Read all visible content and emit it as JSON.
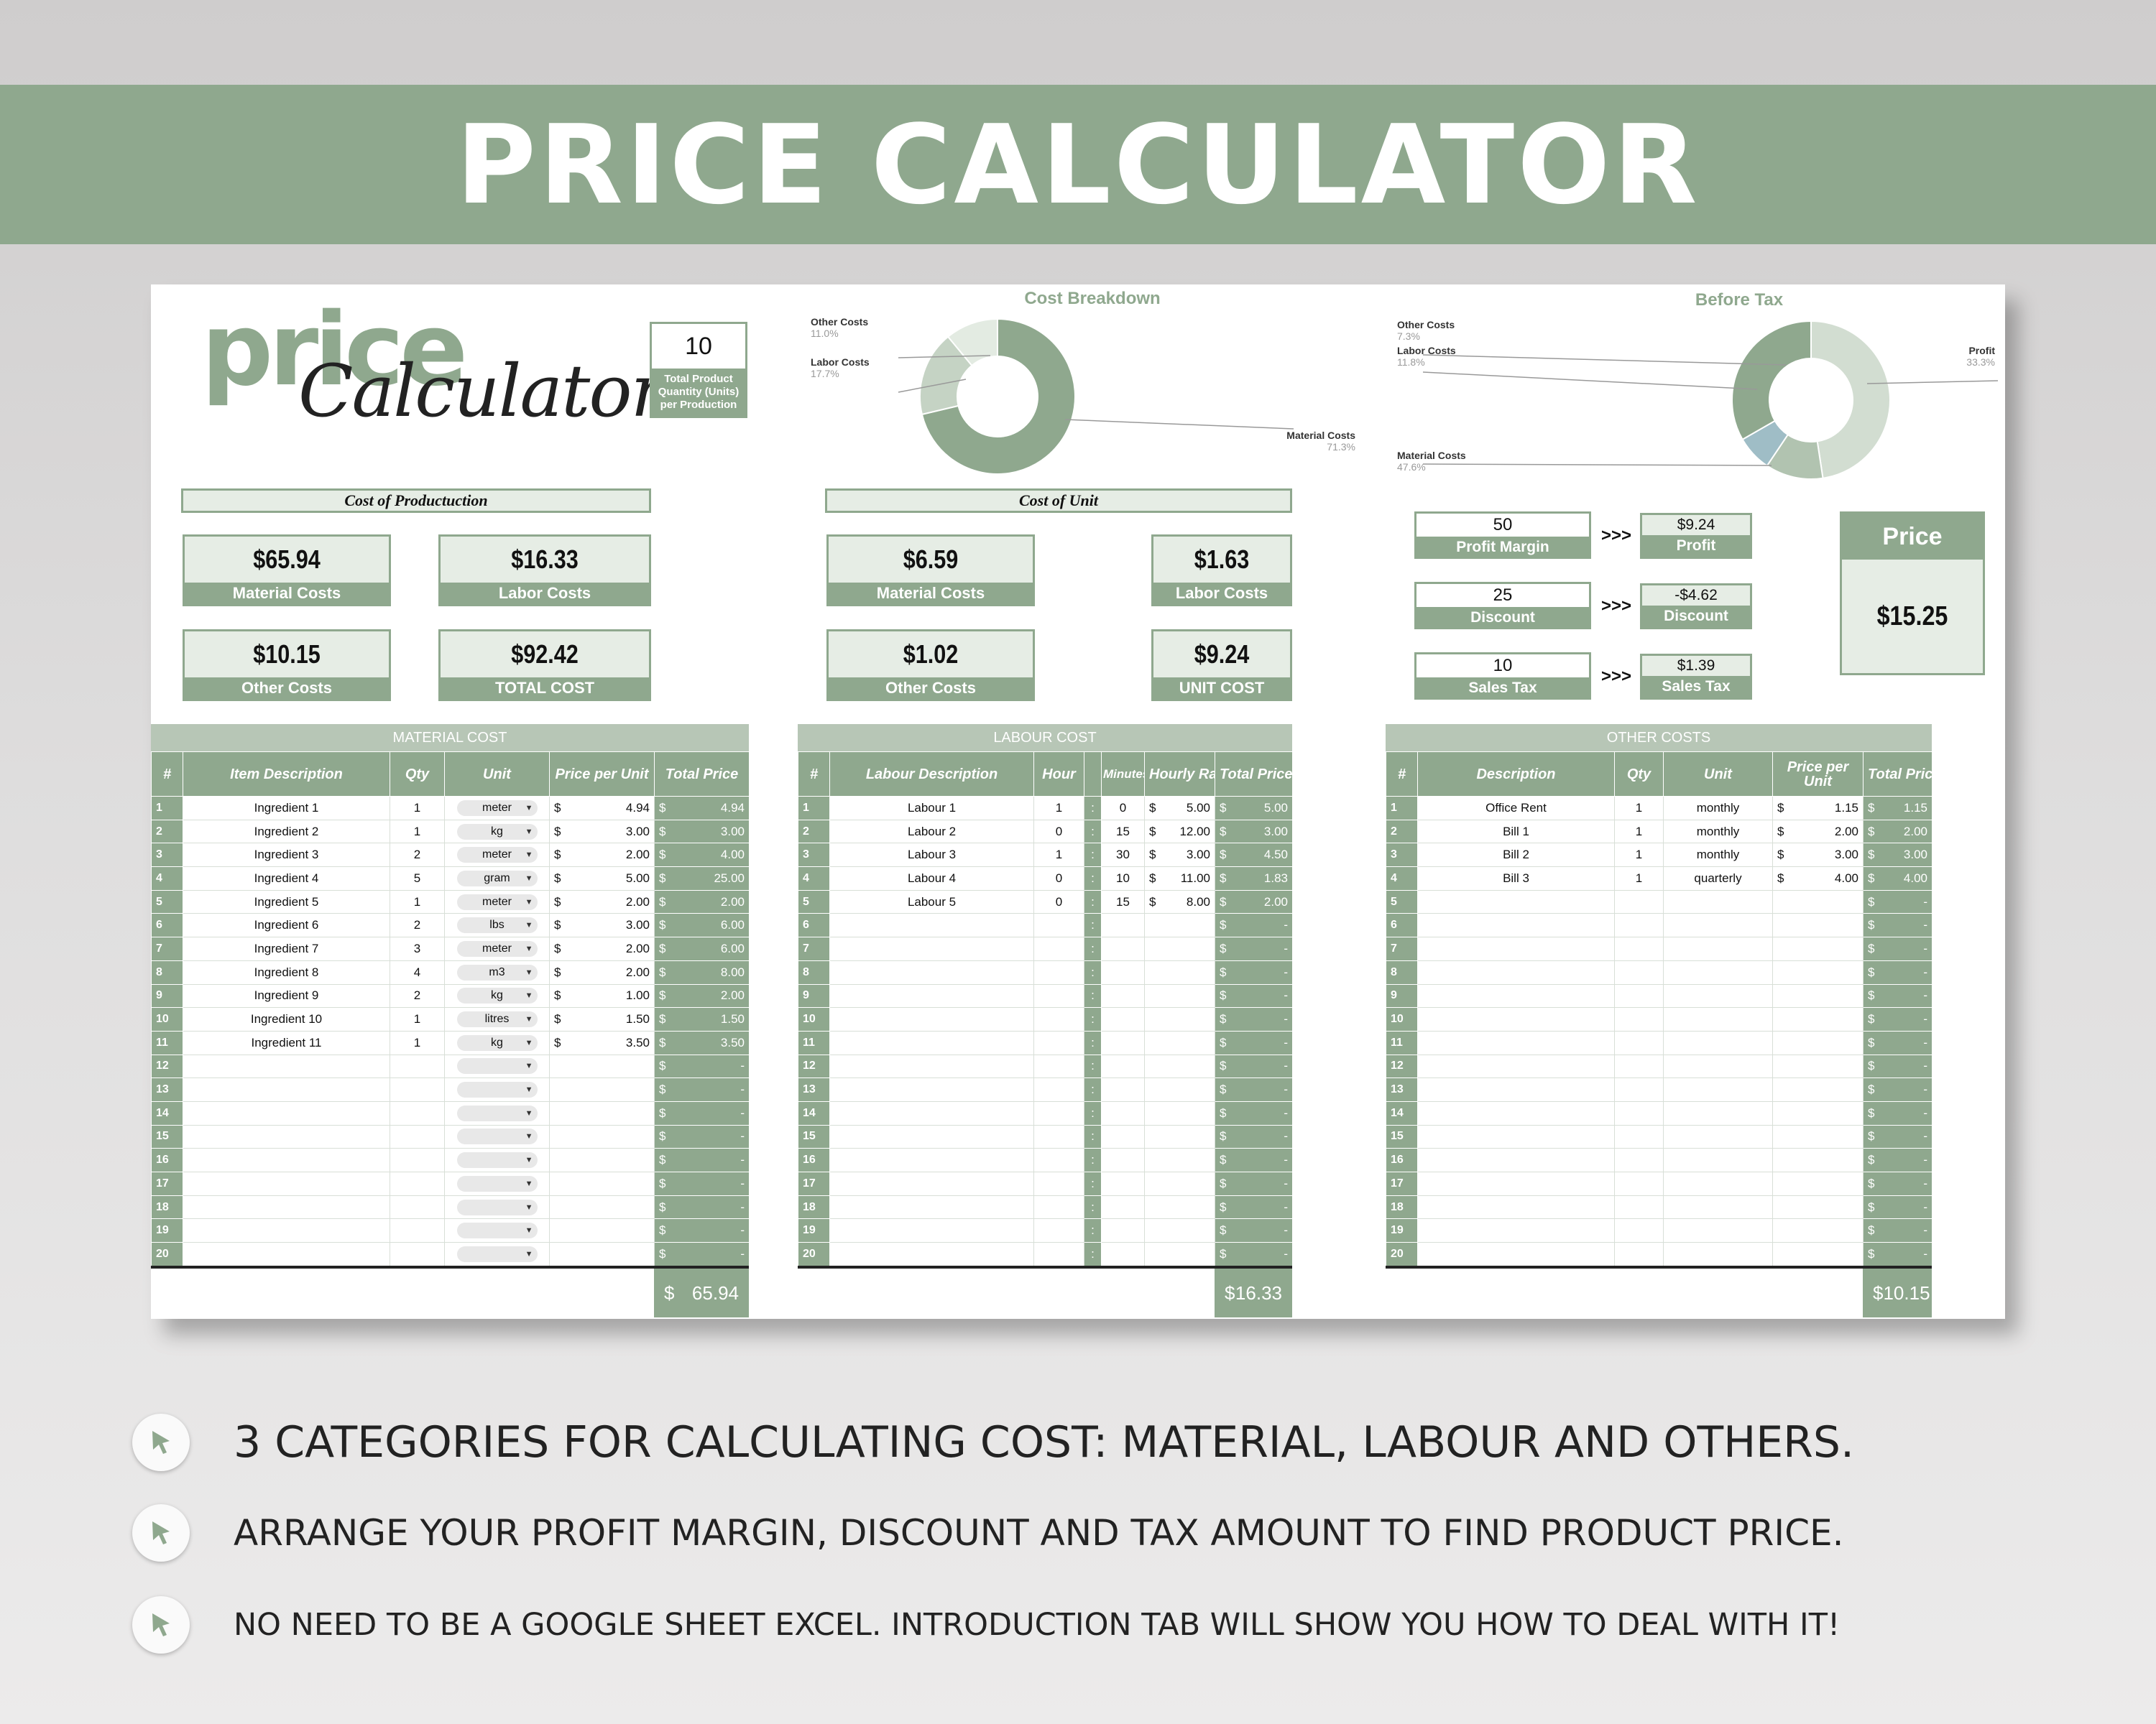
{
  "banner": {
    "title": "PRICE CALCULATOR"
  },
  "logo": {
    "word1": "price",
    "word2": "Calculator"
  },
  "quantity": {
    "value": "10",
    "label": "Total Product Quantity (Units) per Production"
  },
  "cost_of_production": {
    "title": "Cost of Productuction",
    "cards": [
      {
        "value": "$65.94",
        "label": "Material Costs"
      },
      {
        "value": "$16.33",
        "label": "Labor Costs"
      },
      {
        "value": "$10.15",
        "label": "Other Costs"
      },
      {
        "value": "$92.42",
        "label": "TOTAL COST"
      }
    ]
  },
  "cost_of_unit": {
    "title": "Cost of Unit",
    "cards": [
      {
        "value": "$6.59",
        "label": "Material Costs"
      },
      {
        "value": "$1.63",
        "label": "Labor Costs"
      },
      {
        "value": "$1.02",
        "label": "Other Costs"
      },
      {
        "value": "$9.24",
        "label": "UNIT COST"
      }
    ]
  },
  "pricing": {
    "arrow": ">>>",
    "rows": [
      {
        "input": "50",
        "input_label": "Profit Margin",
        "result": "$9.24",
        "result_label": "Profit"
      },
      {
        "input": "25",
        "input_label": "Discount",
        "result": "-$4.62",
        "result_label": "Discount"
      },
      {
        "input": "10",
        "input_label": "Sales Tax",
        "result": "$1.39",
        "result_label": "Sales Tax"
      }
    ],
    "price_label": "Price",
    "price_value": "$15.25"
  },
  "chart_data": [
    {
      "type": "pie",
      "title": "Cost Breakdown",
      "categories": [
        "Material Costs",
        "Labor Costs",
        "Other Costs"
      ],
      "values": [
        71.3,
        17.7,
        11.0
      ],
      "labels": [
        "71.3%",
        "17.7%",
        "11.0%"
      ],
      "colors": [
        "#8fa88e",
        "#c5d3c4",
        "#e3ebe2"
      ]
    },
    {
      "type": "pie",
      "title": "Before Tax",
      "categories": [
        "Material Costs",
        "Labor Costs",
        "Other Costs",
        "Profit"
      ],
      "values": [
        47.6,
        11.8,
        7.3,
        33.3
      ],
      "labels": [
        "47.6%",
        "11.8%",
        "7.3%",
        "33.3%"
      ],
      "colors": [
        "#d2ddd1",
        "#b1c3b0",
        "#9fbdc6",
        "#8fa88e"
      ]
    }
  ],
  "material": {
    "caption": "MATERIAL COST",
    "headers": [
      "#",
      "Item Description",
      "Qty",
      "Unit",
      "Price per Unit",
      "Total Price"
    ],
    "rows": [
      [
        "1",
        "Ingredient 1",
        "1",
        "meter",
        "4.94",
        "4.94"
      ],
      [
        "2",
        "Ingredient 2",
        "1",
        "kg",
        "3.00",
        "3.00"
      ],
      [
        "3",
        "Ingredient 3",
        "2",
        "meter",
        "2.00",
        "4.00"
      ],
      [
        "4",
        "Ingredient 4",
        "5",
        "gram",
        "5.00",
        "25.00"
      ],
      [
        "5",
        "Ingredient 5",
        "1",
        "meter",
        "2.00",
        "2.00"
      ],
      [
        "6",
        "Ingredient 6",
        "2",
        "lbs",
        "3.00",
        "6.00"
      ],
      [
        "7",
        "Ingredient 7",
        "3",
        "meter",
        "2.00",
        "6.00"
      ],
      [
        "8",
        "Ingredient 8",
        "4",
        "m3",
        "2.00",
        "8.00"
      ],
      [
        "9",
        "Ingredient 9",
        "2",
        "kg",
        "1.00",
        "2.00"
      ],
      [
        "10",
        "Ingredient 10",
        "1",
        "litres",
        "1.50",
        "1.50"
      ],
      [
        "11",
        "Ingredient 11",
        "1",
        "kg",
        "3.50",
        "3.50"
      ],
      [
        "12",
        "",
        "",
        "",
        "",
        "-"
      ],
      [
        "13",
        "",
        "",
        "",
        "",
        "-"
      ],
      [
        "14",
        "",
        "",
        "",
        "",
        "-"
      ],
      [
        "15",
        "",
        "",
        "",
        "",
        "-"
      ],
      [
        "16",
        "",
        "",
        "",
        "",
        "-"
      ],
      [
        "17",
        "",
        "",
        "",
        "",
        "-"
      ],
      [
        "18",
        "",
        "",
        "",
        "",
        "-"
      ],
      [
        "19",
        "",
        "",
        "",
        "",
        "-"
      ],
      [
        "20",
        "",
        "",
        "",
        "",
        "-"
      ]
    ],
    "currency": "$",
    "total": "65.94"
  },
  "labour": {
    "caption": "LABOUR COST",
    "headers": [
      "#",
      "Labour Description",
      "Hour",
      "",
      "Minutes",
      "Hourly Rate",
      "Total Price"
    ],
    "colon": ":",
    "rows": [
      [
        "1",
        "Labour 1",
        "1",
        "0",
        "5.00",
        "5.00"
      ],
      [
        "2",
        "Labour 2",
        "0",
        "15",
        "12.00",
        "3.00"
      ],
      [
        "3",
        "Labour 3",
        "1",
        "30",
        "3.00",
        "4.50"
      ],
      [
        "4",
        "Labour 4",
        "0",
        "10",
        "11.00",
        "1.83"
      ],
      [
        "5",
        "Labour 5",
        "0",
        "15",
        "8.00",
        "2.00"
      ],
      [
        "6",
        "",
        "",
        "",
        "",
        "-"
      ],
      [
        "7",
        "",
        "",
        "",
        "",
        "-"
      ],
      [
        "8",
        "",
        "",
        "",
        "",
        "-"
      ],
      [
        "9",
        "",
        "",
        "",
        "",
        "-"
      ],
      [
        "10",
        "",
        "",
        "",
        "",
        "-"
      ],
      [
        "11",
        "",
        "",
        "",
        "",
        "-"
      ],
      [
        "12",
        "",
        "",
        "",
        "",
        "-"
      ],
      [
        "13",
        "",
        "",
        "",
        "",
        "-"
      ],
      [
        "14",
        "",
        "",
        "",
        "",
        "-"
      ],
      [
        "15",
        "",
        "",
        "",
        "",
        "-"
      ],
      [
        "16",
        "",
        "",
        "",
        "",
        "-"
      ],
      [
        "17",
        "",
        "",
        "",
        "",
        "-"
      ],
      [
        "18",
        "",
        "",
        "",
        "",
        "-"
      ],
      [
        "19",
        "",
        "",
        "",
        "",
        "-"
      ],
      [
        "20",
        "",
        "",
        "",
        "",
        "-"
      ]
    ],
    "currency": "$",
    "total": "16.33"
  },
  "other": {
    "caption": "OTHER COSTS",
    "headers": [
      "#",
      "Description",
      "Qty",
      "Unit",
      "Price per Unit",
      "Total Price"
    ],
    "rows": [
      [
        "1",
        "Office Rent",
        "1",
        "monthly",
        "1.15",
        "1.15"
      ],
      [
        "2",
        "Bill 1",
        "1",
        "monthly",
        "2.00",
        "2.00"
      ],
      [
        "3",
        "Bill 2",
        "1",
        "monthly",
        "3.00",
        "3.00"
      ],
      [
        "4",
        "Bill 3",
        "1",
        "quarterly",
        "4.00",
        "4.00"
      ],
      [
        "5",
        "",
        "",
        "",
        "",
        "-"
      ],
      [
        "6",
        "",
        "",
        "",
        "",
        "-"
      ],
      [
        "7",
        "",
        "",
        "",
        "",
        "-"
      ],
      [
        "8",
        "",
        "",
        "",
        "",
        "-"
      ],
      [
        "9",
        "",
        "",
        "",
        "",
        "-"
      ],
      [
        "10",
        "",
        "",
        "",
        "",
        "-"
      ],
      [
        "11",
        "",
        "",
        "",
        "",
        "-"
      ],
      [
        "12",
        "",
        "",
        "",
        "",
        "-"
      ],
      [
        "13",
        "",
        "",
        "",
        "",
        "-"
      ],
      [
        "14",
        "",
        "",
        "",
        "",
        "-"
      ],
      [
        "15",
        "",
        "",
        "",
        "",
        "-"
      ],
      [
        "16",
        "",
        "",
        "",
        "",
        "-"
      ],
      [
        "17",
        "",
        "",
        "",
        "",
        "-"
      ],
      [
        "18",
        "",
        "",
        "",
        "",
        "-"
      ],
      [
        "19",
        "",
        "",
        "",
        "",
        "-"
      ],
      [
        "20",
        "",
        "",
        "",
        "",
        "-"
      ]
    ],
    "currency": "$",
    "total": "10.15"
  },
  "bullets": [
    "3 CATEGORIES FOR CALCULATING COST: MATERIAL, LABOUR AND OTHERS.",
    "ARRANGE YOUR PROFIT MARGIN, DISCOUNT AND TAX AMOUNT TO FIND PRODUCT PRICE.",
    "NO NEED TO BE A GOOGLE SHEET EXCEL. INTRODUCTION TAB WILL SHOW YOU HOW TO DEAL WITH IT!"
  ],
  "colors": {
    "accent": "#8fa88e",
    "light": "#e6ede5",
    "banner_text": "#ffffff"
  }
}
